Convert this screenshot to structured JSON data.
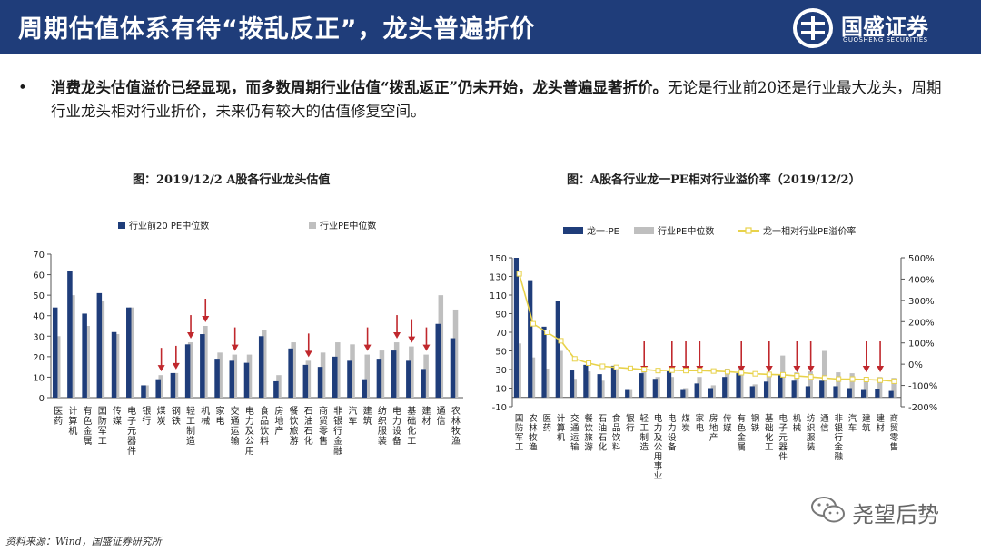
{
  "header": {
    "title": "周期估值体系有待“拨乱反正”，龙头普遍折价"
  },
  "logo": {
    "name": "国盛证券",
    "sub": "GUOSHENG SECURITIES"
  },
  "summary": {
    "bullet": "•",
    "bold": "消费龙头估值溢价已经显现，而多数周期行业估值“拨乱返正”仍未开始，龙头普遍显著折价。",
    "rest": "无论是行业前20还是行业最大龙头，周期行业龙头相对行业折价，未来仍有较大的估值修复空间。"
  },
  "footer": {
    "source": "资料来源：Wind，国盛证券研究所"
  },
  "watermark": {
    "text": "尧望后势"
  },
  "colors": {
    "navy": "#1f3d7a",
    "gray": "#bfbfbf",
    "yellow": "#e8d24a",
    "arrow": "#c0282d"
  },
  "chart_data": [
    {
      "type": "bar",
      "title": "图：2019/12/2 A股各行业龙头估值",
      "ylim": [
        0,
        70
      ],
      "yticks": [
        "0",
        "10",
        "20",
        "30",
        "40",
        "50",
        "60",
        "70"
      ],
      "legend": "top",
      "categories": [
        "医药",
        "计算机",
        "有色金属",
        "国防军工",
        "传媒",
        "电子元器件",
        "银行",
        "煤炭",
        "钢铁",
        "轻工制造",
        "机械",
        "家电",
        "交通运输",
        "电力及公用",
        "食品饮料",
        "房地产",
        "餐饮旅游",
        "石油石化",
        "商贸零售",
        "非银行金融",
        "汽车",
        "建筑",
        "纺织服装",
        "电力设备",
        "基础化工",
        "建材",
        "通信",
        "农林牧渔"
      ],
      "series": [
        {
          "name": "行业前20 PE中位数",
          "values": [
            44,
            62,
            41,
            51,
            32,
            44,
            6,
            9,
            12,
            26,
            31,
            19,
            18,
            17,
            30,
            8,
            24,
            16,
            15,
            20,
            18,
            9,
            19,
            23,
            18,
            14,
            36,
            29
          ]
        },
        {
          "name": "行业PE中位数",
          "values": [
            30,
            50,
            35,
            47,
            31,
            44,
            6,
            11,
            12,
            27,
            35,
            22,
            21,
            21,
            33,
            11,
            27,
            18,
            22,
            27,
            26,
            21,
            23,
            27,
            25,
            21,
            50,
            43
          ]
        }
      ],
      "arrows_at": [
        "煤炭",
        "钢铁",
        "轻工制造",
        "机械",
        "交通运输",
        "石油石化",
        "建筑",
        "电力设备",
        "基础化工",
        "建材"
      ]
    },
    {
      "type": "bar",
      "title": "图：A股各行业龙一PE相对行业溢价率（2019/12/2）",
      "ylim": [
        -10,
        150
      ],
      "yticks": [
        "-10",
        "10",
        "30",
        "50",
        "70",
        "90",
        "110",
        "130",
        "150"
      ],
      "y2lim": [
        -200,
        500
      ],
      "y2ticks": [
        "-200%",
        "-100%",
        "0%",
        "100%",
        "200%",
        "300%",
        "400%",
        "500%"
      ],
      "legend": "top",
      "categories": [
        "国防军工",
        "农林牧渔",
        "医药",
        "计算机",
        "交通运输",
        "餐饮旅游",
        "石油石化",
        "食品饮料",
        "银行",
        "轻工制造",
        "电力及公用事业",
        "电力设备",
        "煤炭",
        "家电",
        "房地产",
        "传媒",
        "有色金属",
        "钢铁",
        "基础化工",
        "电子元器件",
        "机械",
        "纺织服装",
        "通信",
        "非银行金融",
        "汽车",
        "建筑",
        "建材",
        "商贸零售"
      ],
      "series": [
        {
          "name": "龙一-PE",
          "values": [
            150,
            126,
            76,
            104,
            29,
            35,
            25,
            34,
            8,
            26,
            20,
            28,
            8,
            15,
            10,
            22,
            26,
            12,
            17,
            24,
            18,
            12,
            18,
            12,
            10,
            8,
            9,
            7
          ]
        },
        {
          "name": "行业PE中位数",
          "values": [
            58,
            43,
            31,
            50,
            20,
            28,
            18,
            33,
            8,
            30,
            22,
            22,
            10,
            22,
            13,
            31,
            34,
            14,
            22,
            45,
            27,
            28,
            50,
            27,
            26,
            21,
            22,
            21
          ]
        },
        {
          "name": "龙一相对行业PE溢价率",
          "values": [
            425,
            190,
            150,
            110,
            25,
            5,
            -10,
            -15,
            -20,
            -25,
            -30,
            -28,
            -30,
            -30,
            -32,
            -35,
            -40,
            -45,
            -48,
            -50,
            -55,
            -60,
            -65,
            -70,
            -70,
            -72,
            -75,
            -80
          ]
        }
      ],
      "arrows_at": [
        "轻工制造",
        "电力设备",
        "煤炭",
        "家电",
        "有色金属",
        "基础化工",
        "机械",
        "纺织服装",
        "建筑",
        "建材"
      ]
    }
  ]
}
